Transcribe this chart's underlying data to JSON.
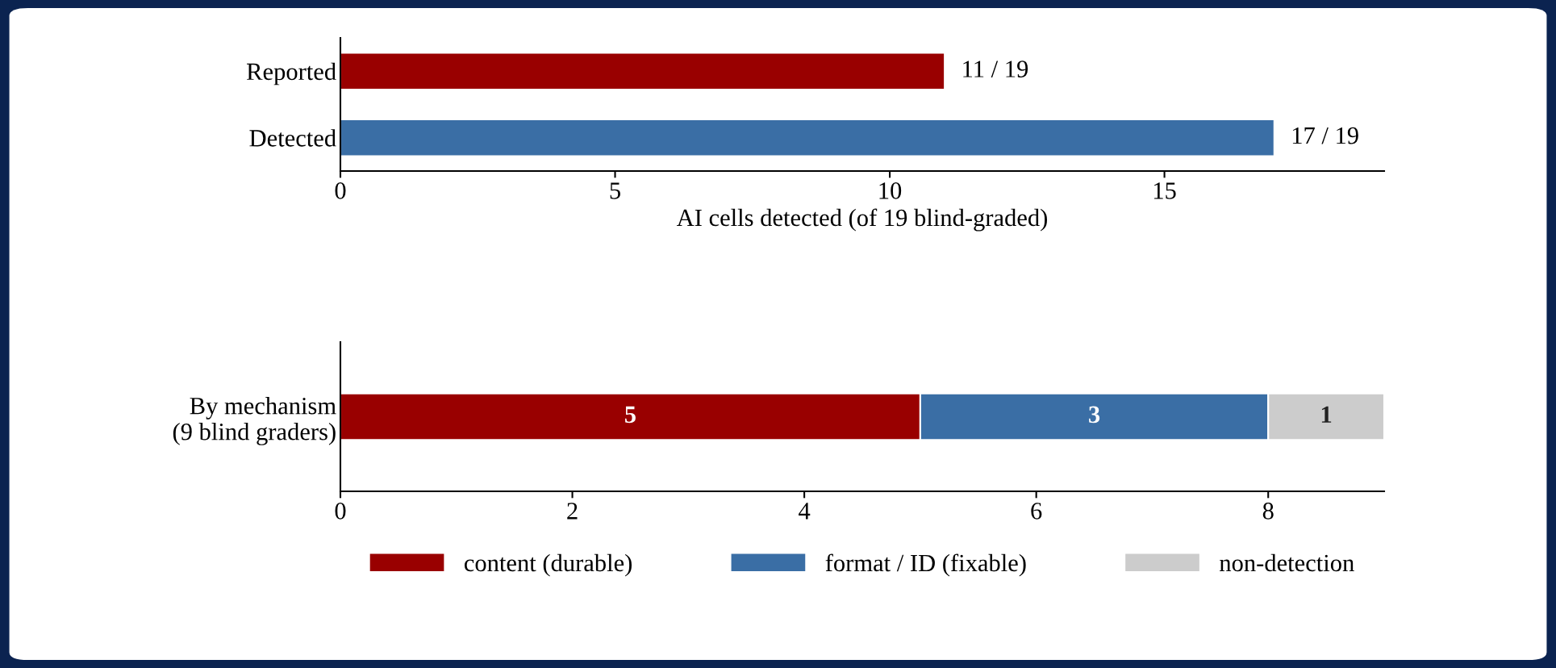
{
  "chart_data": [
    {
      "type": "bar",
      "orientation": "horizontal",
      "categories": [
        "Reported",
        "Detected"
      ],
      "values": [
        11,
        17
      ],
      "colors": [
        "#990000",
        "#3a6ea5"
      ],
      "value_labels": [
        "11 / 19",
        "17 / 19"
      ],
      "xlim": [
        0,
        19
      ],
      "xticks": [
        0,
        5,
        10,
        15
      ],
      "xlabel": "AI cells detected (of 19 blind-graded)",
      "grid": false,
      "legend": false
    },
    {
      "type": "bar",
      "orientation": "horizontal",
      "stacked": true,
      "categories": [
        "By mechanism\n(9 blind graders)"
      ],
      "series": [
        {
          "name": "content (durable)",
          "color": "#990000",
          "values": [
            5
          ]
        },
        {
          "name": "format / ID (fixable)",
          "color": "#3a6ea5",
          "values": [
            3
          ]
        },
        {
          "name": "non-detection",
          "color": "#cccccc",
          "values": [
            1
          ]
        }
      ],
      "data_labels": true,
      "xlim": [
        0,
        9
      ],
      "xticks": [
        0,
        2,
        4,
        6,
        8
      ],
      "grid": false,
      "legend": "bottom"
    }
  ]
}
